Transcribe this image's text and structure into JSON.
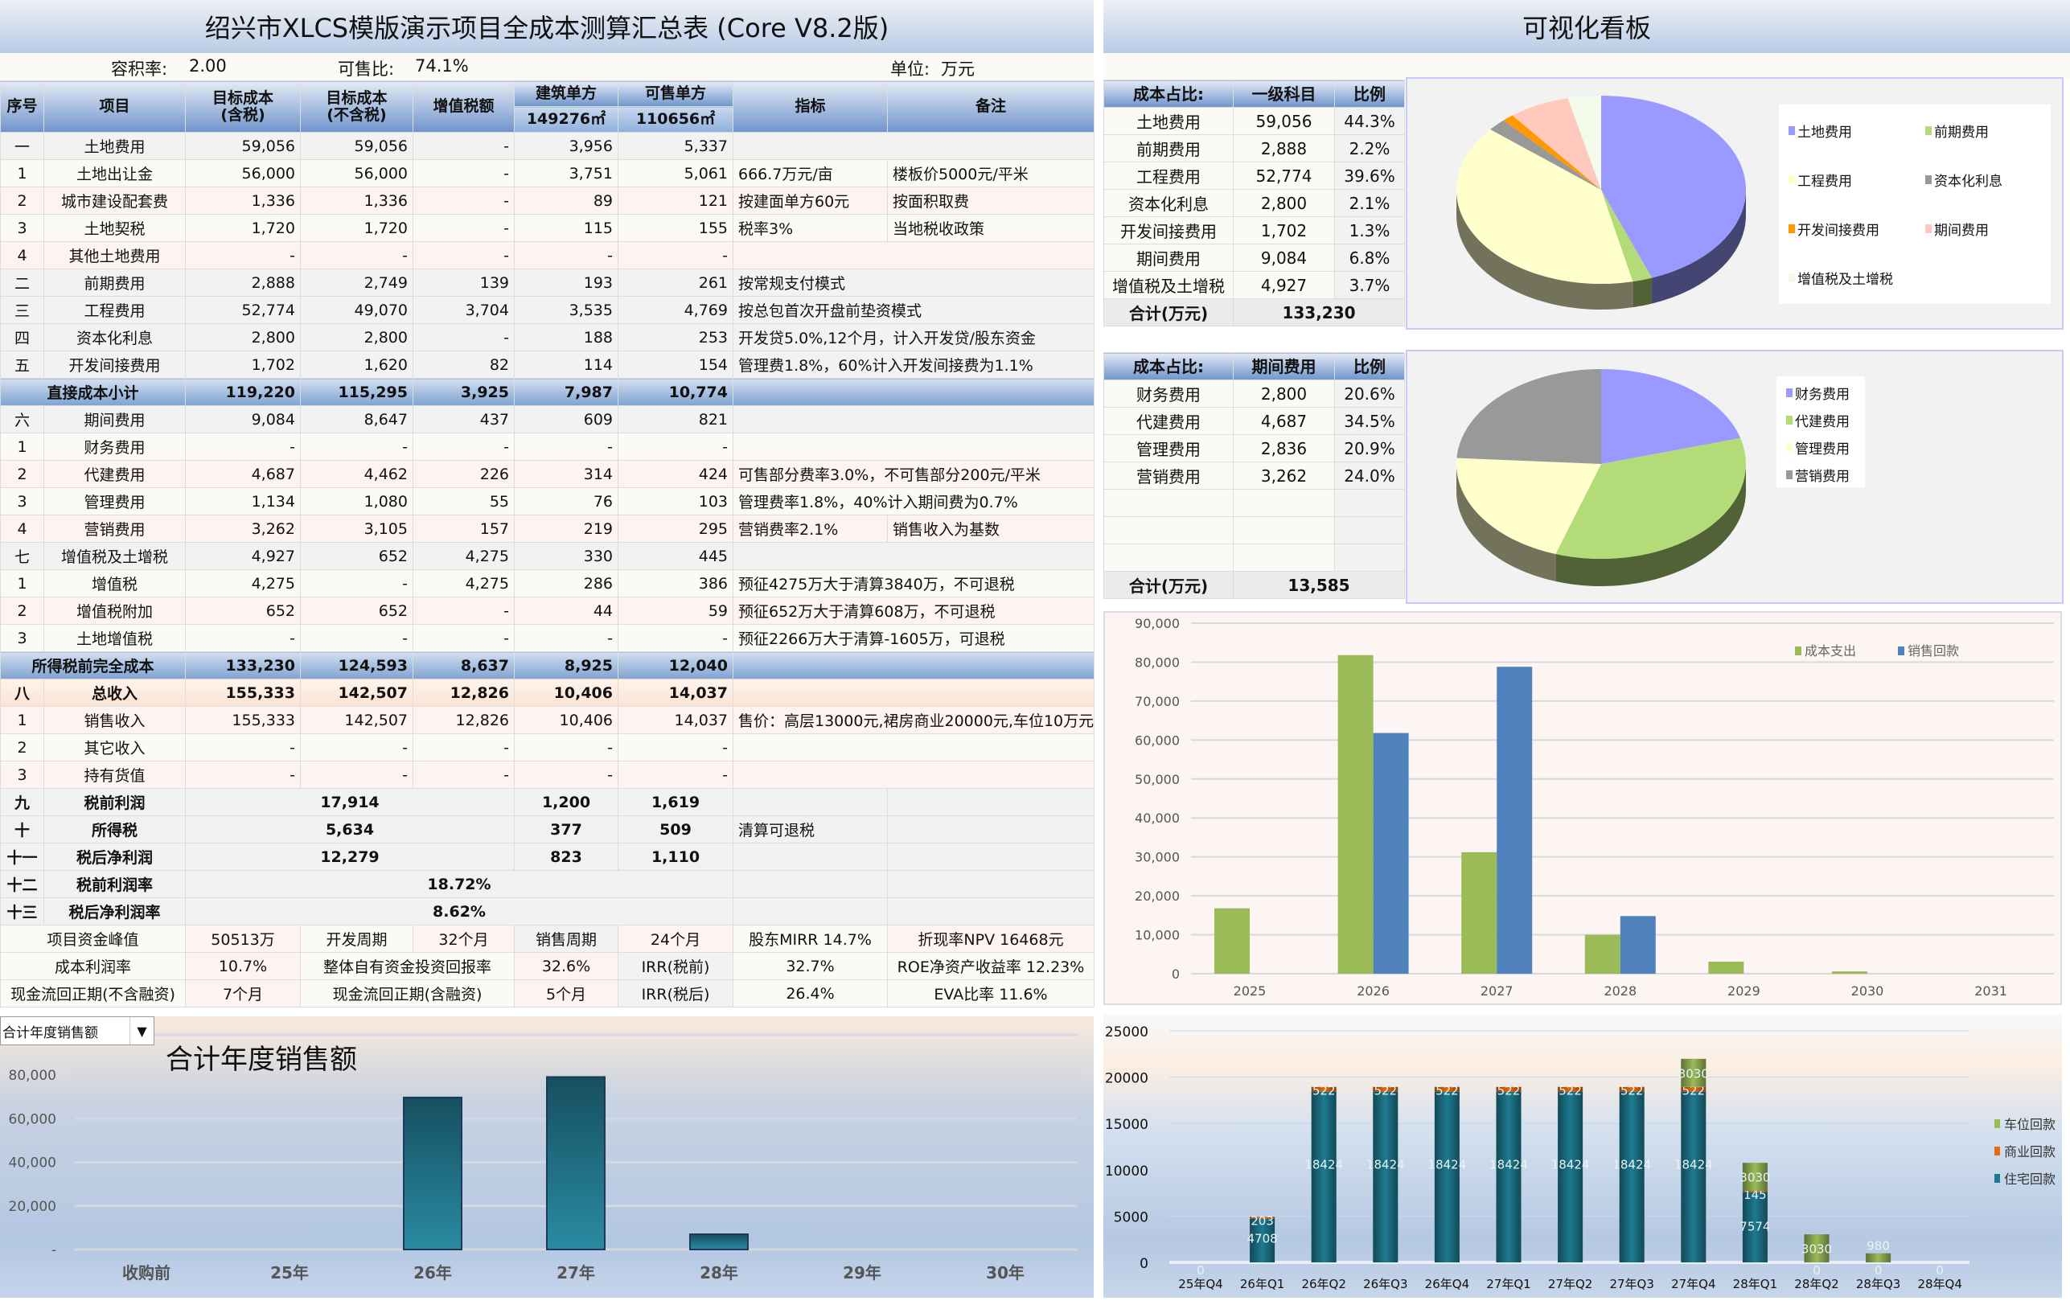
{
  "sheet": {
    "title": "绍兴市XLCS模版演示项目全成本测算汇总表 (Core V8.2版)",
    "far_label": "容积率:",
    "far_value": "2.00",
    "saleable_label": "可售比:",
    "saleable_value": "74.1%",
    "unit_label": "单位:",
    "unit_value": "万元",
    "headers": {
      "seq": "序号",
      "item": "项目",
      "cost_tax_1": "目标成本",
      "cost_tax_2": "(含税)",
      "cost_notax_1": "目标成本",
      "cost_notax_2": "(不含税)",
      "vat": "增值税额",
      "build_unit": "建筑单方",
      "build_area": "149276㎡",
      "sale_unit": "可售单方",
      "sale_area": "110656㎡",
      "indicator": "指标",
      "note": "备注"
    },
    "rows": [
      {
        "seq": "一",
        "name": "土地费用",
        "values": [
          "59,056",
          "59,056",
          "-",
          "3,956",
          "5,337"
        ],
        "indicator": "",
        "note": ""
      },
      {
        "seq": "1",
        "name": "土地出让金",
        "values": [
          "56,000",
          "56,000",
          "-",
          "3,751",
          "5,061"
        ],
        "indicator": "666.7万元/亩",
        "note": "楼板价5000元/平米"
      },
      {
        "seq": "2",
        "name": "城市建设配套费",
        "values": [
          "1,336",
          "1,336",
          "-",
          "89",
          "121"
        ],
        "indicator": "按建面单方60元",
        "note": "按面积取费"
      },
      {
        "seq": "3",
        "name": "土地契税",
        "values": [
          "1,720",
          "1,720",
          "-",
          "115",
          "155"
        ],
        "indicator": "税率3%",
        "note": "当地税收政策"
      },
      {
        "seq": "4",
        "name": "其他土地费用",
        "values": [
          "-",
          "-",
          "-",
          "-",
          "-"
        ],
        "indicator": "",
        "note": ""
      },
      {
        "seq": "二",
        "name": "前期费用",
        "values": [
          "2,888",
          "2,749",
          "139",
          "193",
          "261"
        ],
        "indicator": "按常规支付模式",
        "note": ""
      },
      {
        "seq": "三",
        "name": "工程费用",
        "values": [
          "52,774",
          "49,070",
          "3,704",
          "3,535",
          "4,769"
        ],
        "indicator": "按总包首次开盘前垫资模式",
        "note": ""
      },
      {
        "seq": "四",
        "name": "资本化利息",
        "values": [
          "2,800",
          "2,800",
          "-",
          "188",
          "253"
        ],
        "indicator": "开发贷5.0%,12个月，计入开发贷/股东资金",
        "note": ""
      },
      {
        "seq": "五",
        "name": "开发间接费用",
        "values": [
          "1,702",
          "1,620",
          "82",
          "114",
          "154"
        ],
        "indicator": "管理费1.8%，60%计入开发间接费为1.1%",
        "note": ""
      },
      {
        "seq": "",
        "name": "直接成本小计",
        "values": [
          "119,220",
          "115,295",
          "3,925",
          "7,987",
          "10,774"
        ],
        "indicator": "",
        "note": ""
      },
      {
        "seq": "六",
        "name": "期间费用",
        "values": [
          "9,084",
          "8,647",
          "437",
          "609",
          "821"
        ],
        "indicator": "",
        "note": ""
      },
      {
        "seq": "1",
        "name": "财务费用",
        "values": [
          "-",
          "-",
          "-",
          "-",
          "-"
        ],
        "indicator": "",
        "note": ""
      },
      {
        "seq": "2",
        "name": "代建费用",
        "values": [
          "4,687",
          "4,462",
          "226",
          "314",
          "424"
        ],
        "indicator": "可售部分费率3.0%，不可售部分200元/平米",
        "note": ""
      },
      {
        "seq": "3",
        "name": "管理费用",
        "values": [
          "1,134",
          "1,080",
          "55",
          "76",
          "103"
        ],
        "indicator": "管理费率1.8%，40%计入期间费为0.7%",
        "note": ""
      },
      {
        "seq": "4",
        "name": "营销费用",
        "values": [
          "3,262",
          "3,105",
          "157",
          "219",
          "295"
        ],
        "indicator": "营销费率2.1%",
        "note": "销售收入为基数"
      },
      {
        "seq": "七",
        "name": "增值税及土增税",
        "values": [
          "4,927",
          "652",
          "4,275",
          "330",
          "445"
        ],
        "indicator": "",
        "note": ""
      },
      {
        "seq": "1",
        "name": "增值税",
        "values": [
          "4,275",
          "-",
          "4,275",
          "286",
          "386"
        ],
        "indicator": "预征4275万大于清算3840万，不可退税",
        "note": ""
      },
      {
        "seq": "2",
        "name": "增值税附加",
        "values": [
          "652",
          "652",
          "-",
          "44",
          "59"
        ],
        "indicator": "预征652万大于清算608万，不可退税",
        "note": ""
      },
      {
        "seq": "3",
        "name": "土地增值税",
        "values": [
          "-",
          "-",
          "-",
          "-",
          "-"
        ],
        "indicator": "预征2266万大于清算-1605万，可退税",
        "note": ""
      },
      {
        "seq": "",
        "name": "所得税前完全成本",
        "values": [
          "133,230",
          "124,593",
          "8,637",
          "8,925",
          "12,040"
        ],
        "indicator": "",
        "note": ""
      },
      {
        "seq": "八",
        "name": "总收入",
        "values": [
          "155,333",
          "142,507",
          "12,826",
          "10,406",
          "14,037"
        ],
        "indicator": "",
        "note": ""
      },
      {
        "seq": "1",
        "name": "销售收入",
        "values": [
          "155,333",
          "142,507",
          "12,826",
          "10,406",
          "14,037"
        ],
        "indicator": "售价：高层13000元,裙房商业20000元,车位10万元/个",
        "note": ""
      },
      {
        "seq": "2",
        "name": "其它收入",
        "values": [
          "-",
          "-",
          "-",
          "-",
          "-"
        ],
        "indicator": "",
        "note": ""
      },
      {
        "seq": "3",
        "name": "持有货值",
        "values": [
          "-",
          "-",
          "-",
          "-",
          "-"
        ],
        "indicator": "",
        "note": ""
      }
    ],
    "profit_rows": [
      {
        "seq": "九",
        "name": "税前利润",
        "value": "17,914",
        "build": "1,200",
        "sale": "1,619",
        "indicator": ""
      },
      {
        "seq": "十",
        "name": "所得税",
        "value": "5,634",
        "build": "377",
        "sale": "509",
        "indicator": "清算可退税"
      },
      {
        "seq": "十一",
        "name": "税后净利润",
        "value": "12,279",
        "build": "823",
        "sale": "1,110",
        "indicator": ""
      }
    ],
    "rate_rows": [
      {
        "seq": "十二",
        "name": "税前利润率",
        "value": "18.72%"
      },
      {
        "seq": "十三",
        "name": "税后净利润率",
        "value": "8.62%"
      }
    ],
    "summary_rows": [
      [
        "项目资金峰值",
        "50513万",
        "开发周期",
        "32个月",
        "销售周期",
        "24个月",
        "股东MIRR 14.7%",
        "折现率NPV 16468元"
      ],
      [
        "成本利润率",
        "10.7%",
        "整体自有资金投资回报率",
        "32.6%",
        "IRR(税前)",
        "32.7%",
        "ROE净资产收益率 12.23%"
      ],
      [
        "现金流回正期(不含融资)",
        "7个月",
        "现金流回正期(含融资)",
        "5个月",
        "IRR(税后)",
        "26.4%",
        "EVA比率 11.6%"
      ]
    ]
  },
  "annual_sales": {
    "dropdown_value": "合计年度销售额",
    "dropdown_icon": "triangle-down-icon",
    "chart_data": {
      "type": "bar",
      "title": "合计年度销售额",
      "categories": [
        "收购前",
        "25年",
        "26年",
        "27年",
        "28年",
        "29年",
        "30年"
      ],
      "values": [
        0,
        0,
        69700,
        79100,
        7000,
        0,
        0
      ],
      "ylim": [
        0,
        80000
      ],
      "yticks": [
        "-",
        "20,000",
        "40,000",
        "60,000",
        "80,000"
      ],
      "grid": true,
      "color": "#1f6e82"
    }
  },
  "dashboard": {
    "title": "可视化看板",
    "cost_table": {
      "headers": [
        "成本占比:",
        "一级科目",
        "比例"
      ],
      "rows": [
        [
          "土地费用",
          "59,056",
          "44.3%"
        ],
        [
          "前期费用",
          "2,888",
          "2.2%"
        ],
        [
          "工程费用",
          "52,774",
          "39.6%"
        ],
        [
          "资本化利息",
          "2,800",
          "2.1%"
        ],
        [
          "开发间接费用",
          "1,702",
          "1.3%"
        ],
        [
          "期间费用",
          "9,084",
          "6.8%"
        ],
        [
          "增值税及土增税",
          "4,927",
          "3.7%"
        ]
      ],
      "total_label": "合计(万元)",
      "total_value": "133,230"
    },
    "cost_pie": {
      "type": "pie",
      "labels": [
        "土地费用",
        "前期费用",
        "工程费用",
        "资本化利息",
        "开发间接费用",
        "期间费用",
        "增值税及土增税"
      ],
      "values": [
        44.3,
        2.2,
        39.6,
        2.1,
        1.3,
        6.8,
        3.7
      ],
      "colors": [
        "#9999ff",
        "#b3dc78",
        "#ffffcc",
        "#999999",
        "#ff9900",
        "#ffc9bd",
        "#f2fbe9"
      ],
      "legend": "right"
    },
    "period_table": {
      "headers": [
        "成本占比:",
        "期间费用",
        "比例"
      ],
      "rows": [
        [
          "财务费用",
          "2,800",
          "20.6%"
        ],
        [
          "代建费用",
          "4,687",
          "34.5%"
        ],
        [
          "管理费用",
          "2,836",
          "20.9%"
        ],
        [
          "营销费用",
          "3,262",
          "24.0%"
        ],
        [
          "",
          "",
          ""
        ],
        [
          "",
          "",
          ""
        ],
        [
          "",
          "",
          ""
        ]
      ],
      "total_label": "合计(万元)",
      "total_value": "13,585"
    },
    "period_pie": {
      "type": "pie",
      "labels": [
        "财务费用",
        "代建费用",
        "管理费用",
        "营销费用"
      ],
      "values": [
        20.6,
        34.5,
        20.9,
        24.0
      ],
      "colors": [
        "#9999ff",
        "#b3dc78",
        "#ffffcc",
        "#999999"
      ],
      "legend": "right"
    },
    "cashflow_chart": {
      "type": "bar",
      "categories": [
        "2025",
        "2026",
        "2027",
        "2028",
        "2029",
        "2030",
        "2031"
      ],
      "series": [
        {
          "name": "成本支出",
          "values": [
            16800,
            81800,
            31200,
            10000,
            3100,
            600,
            0
          ],
          "color": "#9bbb59"
        },
        {
          "name": "销售回款",
          "values": [
            0,
            61800,
            78800,
            14800,
            0,
            0,
            0
          ],
          "color": "#4f81bd"
        }
      ],
      "ylim": [
        0,
        90000
      ],
      "yticks": [
        "0",
        "10,000",
        "20,000",
        "30,000",
        "40,000",
        "50,000",
        "60,000",
        "70,000",
        "80,000",
        "90,000"
      ],
      "grid": true,
      "legend": "top-right"
    },
    "quarterly_chart": {
      "type": "stacked-bar",
      "categories": [
        "25年Q4",
        "26年Q1",
        "26年Q2",
        "26年Q3",
        "26年Q4",
        "27年Q1",
        "27年Q2",
        "27年Q3",
        "27年Q4",
        "28年Q1",
        "28年Q2",
        "28年Q3",
        "28年Q4"
      ],
      "series": [
        {
          "name": "住宅回款",
          "values": [
            0,
            4708,
            18424,
            18424,
            18424,
            18424,
            18424,
            18424,
            18424,
            7574,
            0,
            0,
            0
          ],
          "color": "#1e7a90"
        },
        {
          "name": "商业回款",
          "values": [
            0,
            203,
            522,
            522,
            522,
            522,
            522,
            522,
            522,
            145,
            0,
            0,
            0
          ],
          "color": "#e46c0a"
        },
        {
          "name": "车位回款",
          "values": [
            0,
            0,
            0,
            0,
            0,
            0,
            0,
            0,
            3030,
            3030,
            3030,
            980,
            0
          ],
          "color": "#9bbb59"
        }
      ],
      "ylim": [
        0,
        25000
      ],
      "yticks": [
        "0",
        "5000",
        "10000",
        "15000",
        "20000",
        "25000"
      ],
      "legend": "right"
    }
  }
}
